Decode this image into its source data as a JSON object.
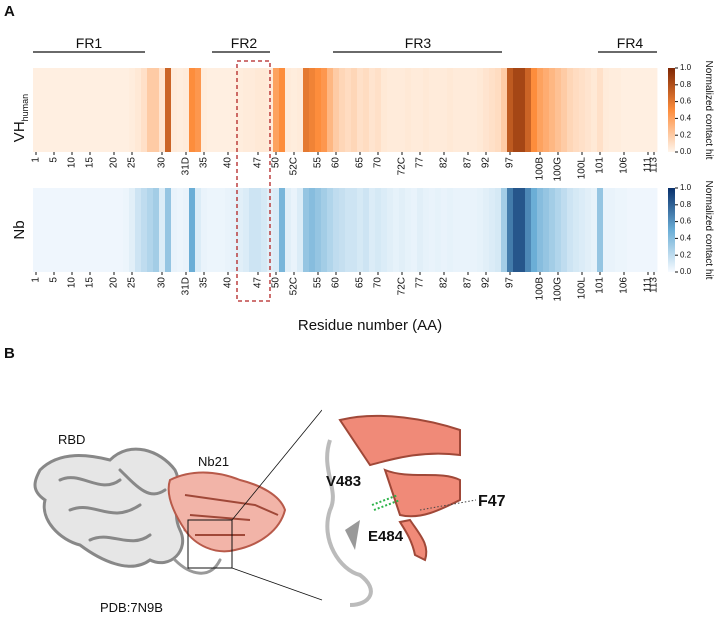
{
  "panel_a": {
    "label": "A",
    "regions": [
      {
        "label": "FR1"
      },
      {
        "label": "FR2"
      },
      {
        "label": "FR3"
      },
      {
        "label": "FR4"
      }
    ],
    "x_label": "Residue number (AA)",
    "xticks": [
      {
        "value": 0,
        "label": "1"
      },
      {
        "value": 3,
        "label": "5"
      },
      {
        "value": 6,
        "label": "10"
      },
      {
        "value": 9,
        "label": "15"
      },
      {
        "value": 13,
        "label": "20"
      },
      {
        "value": 16,
        "label": "25"
      },
      {
        "value": 21,
        "label": "30"
      },
      {
        "value": 25,
        "label": "31D"
      },
      {
        "value": 28,
        "label": "35"
      },
      {
        "value": 32,
        "label": "40"
      },
      {
        "value": 37,
        "label": "47"
      },
      {
        "value": 40,
        "label": "50"
      },
      {
        "value": 43,
        "label": "52C"
      },
      {
        "value": 47,
        "label": "55"
      },
      {
        "value": 50,
        "label": "60"
      },
      {
        "value": 54,
        "label": "65"
      },
      {
        "value": 57,
        "label": "70"
      },
      {
        "value": 61,
        "label": "72C"
      },
      {
        "value": 64,
        "label": "77"
      },
      {
        "value": 68,
        "label": "82"
      },
      {
        "value": 72,
        "label": "87"
      },
      {
        "value": 75,
        "label": "92"
      },
      {
        "value": 79,
        "label": "97"
      },
      {
        "value": 84,
        "label": "100B"
      },
      {
        "value": 87,
        "label": "100G"
      },
      {
        "value": 91,
        "label": "100L"
      },
      {
        "value": 94,
        "label": "101"
      },
      {
        "value": 98,
        "label": "106"
      },
      {
        "value": 102,
        "label": "111"
      },
      {
        "value": 103,
        "label": "113"
      }
    ],
    "heatmaps": [
      {
        "ylabel": "VH",
        "ylabel_sub": "human",
        "colormap": [
          "#fff5eb",
          "#fd8d3c",
          "#7f2704"
        ],
        "values": [
          0.03,
          0.03,
          0.03,
          0.03,
          0.03,
          0.03,
          0.03,
          0.03,
          0.03,
          0.03,
          0.03,
          0.03,
          0.03,
          0.03,
          0.03,
          0.03,
          0.04,
          0.06,
          0.1,
          0.2,
          0.2,
          0.08,
          0.7,
          0.05,
          0.04,
          0.05,
          0.5,
          0.45,
          0.04,
          0.03,
          0.03,
          0.03,
          0.03,
          0.03,
          0.04,
          0.05,
          0.05,
          0.06,
          0.06,
          0.05,
          0.4,
          0.5,
          0.05,
          0.04,
          0.05,
          0.6,
          0.55,
          0.5,
          0.45,
          0.3,
          0.2,
          0.15,
          0.12,
          0.15,
          0.1,
          0.12,
          0.08,
          0.1,
          0.06,
          0.05,
          0.05,
          0.05,
          0.06,
          0.05,
          0.05,
          0.06,
          0.05,
          0.05,
          0.05,
          0.06,
          0.05,
          0.05,
          0.05,
          0.05,
          0.06,
          0.08,
          0.1,
          0.12,
          0.2,
          0.75,
          0.85,
          0.85,
          0.7,
          0.5,
          0.4,
          0.35,
          0.3,
          0.25,
          0.2,
          0.15,
          0.12,
          0.1,
          0.08,
          0.06,
          0.1,
          0.05,
          0.04,
          0.04,
          0.03,
          0.03,
          0.03,
          0.03,
          0.03,
          0.03
        ],
        "colorbar": {
          "label": "Normalized contact hit",
          "ticks": [
            {
              "value": 0,
              "label": "0.0"
            },
            0.2,
            0.4,
            0.6,
            0.8,
            {
              "value": 1,
              "label": "1.0"
            }
          ]
        }
      },
      {
        "ylabel": "Nb",
        "colormap": [
          "#f7fbff",
          "#6baed6",
          "#08306b"
        ],
        "values": [
          0.03,
          0.03,
          0.03,
          0.03,
          0.03,
          0.03,
          0.03,
          0.03,
          0.03,
          0.03,
          0.03,
          0.03,
          0.03,
          0.03,
          0.03,
          0.04,
          0.08,
          0.15,
          0.2,
          0.25,
          0.3,
          0.1,
          0.35,
          0.05,
          0.04,
          0.05,
          0.5,
          0.1,
          0.05,
          0.04,
          0.04,
          0.04,
          0.05,
          0.06,
          0.08,
          0.1,
          0.15,
          0.15,
          0.12,
          0.08,
          0.1,
          0.45,
          0.08,
          0.05,
          0.1,
          0.35,
          0.4,
          0.35,
          0.3,
          0.25,
          0.2,
          0.18,
          0.15,
          0.15,
          0.12,
          0.15,
          0.1,
          0.12,
          0.1,
          0.08,
          0.06,
          0.08,
          0.06,
          0.05,
          0.08,
          0.06,
          0.05,
          0.06,
          0.05,
          0.06,
          0.05,
          0.05,
          0.05,
          0.05,
          0.06,
          0.08,
          0.1,
          0.12,
          0.3,
          0.7,
          0.85,
          0.85,
          0.65,
          0.5,
          0.4,
          0.35,
          0.3,
          0.25,
          0.2,
          0.15,
          0.12,
          0.1,
          0.08,
          0.06,
          0.35,
          0.05,
          0.05,
          0.04,
          0.04,
          0.03,
          0.03,
          0.03,
          0.03,
          0.03
        ],
        "colorbar": {
          "label": "Normalized contact hit",
          "ticks": [
            {
              "value": 0,
              "label": "0.0"
            },
            0.2,
            0.4,
            0.6,
            0.8,
            {
              "value": 1,
              "label": "1.0"
            }
          ]
        }
      }
    ]
  },
  "panel_b": {
    "label": "B",
    "labels": {
      "rbd": "RBD",
      "nb": "Nb21",
      "pdb": "PDB:7N9B",
      "v483": "V483",
      "e484": "E484",
      "f47": "F47"
    }
  }
}
